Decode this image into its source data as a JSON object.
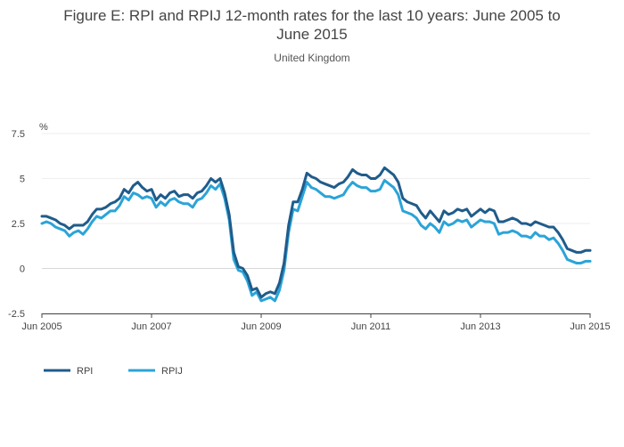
{
  "title_line1": "Figure E: RPI and RPIJ 12-month rates for the last 10 years: June 2005 to",
  "title_line2": "June 2015",
  "subtitle": "United Kingdom",
  "chart_data": {
    "type": "line",
    "title": "Figure E: RPI and RPIJ 12-month rates for the last 10 years: June 2005 to June 2015",
    "subtitle": "United Kingdom",
    "ylabel": "%",
    "xlabel": "",
    "ylim": [
      -2.5,
      7.5
    ],
    "yticks": [
      {
        "value": -2.5,
        "label": "-2.5"
      },
      {
        "value": 0,
        "label": "0"
      },
      {
        "value": 2.5,
        "label": "2.5"
      },
      {
        "value": 5,
        "label": "5"
      },
      {
        "value": 7.5,
        "label": "7.5"
      }
    ],
    "xticks": [
      {
        "index": 0,
        "label": "Jun 2005"
      },
      {
        "index": 24,
        "label": "Jun 2007"
      },
      {
        "index": 48,
        "label": "Jun 2009"
      },
      {
        "index": 72,
        "label": "Jun 2011"
      },
      {
        "index": 96,
        "label": "Jun 2013"
      },
      {
        "index": 120,
        "label": "Jun 2015"
      }
    ],
    "x_start": "Jun 2005",
    "x_end": "Jun 2015",
    "frequency": "monthly",
    "grid": true,
    "legend_position": "bottom-left",
    "series": [
      {
        "name": "RPI",
        "color": "#1f5c8b",
        "values": [
          2.9,
          2.9,
          2.8,
          2.7,
          2.5,
          2.4,
          2.2,
          2.4,
          2.4,
          2.4,
          2.6,
          3.0,
          3.3,
          3.3,
          3.4,
          3.6,
          3.7,
          3.9,
          4.4,
          4.2,
          4.6,
          4.8,
          4.5,
          4.3,
          4.4,
          3.8,
          4.1,
          3.9,
          4.2,
          4.3,
          4.0,
          4.1,
          4.1,
          3.9,
          4.2,
          4.3,
          4.6,
          5.0,
          4.8,
          5.0,
          4.2,
          3.0,
          0.9,
          0.1,
          0.0,
          -0.4,
          -1.2,
          -1.1,
          -1.6,
          -1.4,
          -1.3,
          -1.4,
          -0.8,
          0.3,
          2.4,
          3.7,
          3.7,
          4.4,
          5.3,
          5.1,
          5.0,
          4.8,
          4.7,
          4.6,
          4.5,
          4.7,
          4.8,
          5.1,
          5.5,
          5.3,
          5.2,
          5.2,
          5.0,
          5.0,
          5.2,
          5.6,
          5.4,
          5.2,
          4.8,
          3.9,
          3.7,
          3.6,
          3.5,
          3.1,
          2.8,
          3.2,
          2.9,
          2.6,
          3.2,
          3.0,
          3.1,
          3.3,
          3.2,
          3.3,
          2.9,
          3.1,
          3.3,
          3.1,
          3.3,
          3.2,
          2.6,
          2.6,
          2.7,
          2.8,
          2.7,
          2.5,
          2.5,
          2.4,
          2.6,
          2.5,
          2.4,
          2.3,
          2.3,
          2.0,
          1.6,
          1.1,
          1.0,
          0.9,
          0.9,
          1.0,
          1.0
        ]
      },
      {
        "name": "RPIJ",
        "color": "#2ba4d8",
        "values": [
          2.5,
          2.6,
          2.5,
          2.3,
          2.2,
          2.1,
          1.8,
          2.0,
          2.1,
          1.9,
          2.2,
          2.6,
          2.9,
          2.8,
          3.0,
          3.2,
          3.2,
          3.5,
          4.0,
          3.8,
          4.2,
          4.1,
          3.9,
          4.0,
          3.9,
          3.4,
          3.7,
          3.5,
          3.8,
          3.9,
          3.7,
          3.6,
          3.6,
          3.4,
          3.8,
          3.9,
          4.2,
          4.6,
          4.4,
          4.7,
          3.9,
          2.7,
          0.5,
          -0.1,
          -0.2,
          -0.7,
          -1.5,
          -1.3,
          -1.8,
          -1.7,
          -1.6,
          -1.8,
          -1.2,
          -0.1,
          2.0,
          3.3,
          3.2,
          4.0,
          4.8,
          4.5,
          4.4,
          4.2,
          4.0,
          4.0,
          3.9,
          4.0,
          4.1,
          4.5,
          4.8,
          4.6,
          4.5,
          4.5,
          4.3,
          4.3,
          4.4,
          4.9,
          4.7,
          4.5,
          4.1,
          3.2,
          3.1,
          3.0,
          2.8,
          2.4,
          2.2,
          2.5,
          2.3,
          2.0,
          2.6,
          2.4,
          2.5,
          2.7,
          2.6,
          2.7,
          2.3,
          2.5,
          2.7,
          2.6,
          2.6,
          2.5,
          1.9,
          2.0,
          2.0,
          2.1,
          2.0,
          1.8,
          1.8,
          1.7,
          2.0,
          1.8,
          1.8,
          1.6,
          1.7,
          1.4,
          1.0,
          0.5,
          0.4,
          0.3,
          0.3,
          0.4,
          0.4
        ]
      }
    ]
  }
}
